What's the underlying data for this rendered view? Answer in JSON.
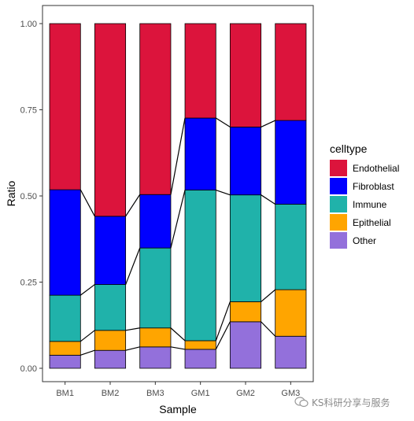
{
  "chart_data": {
    "type": "bar",
    "stacked": true,
    "categories": [
      "BM1",
      "BM2",
      "BM3",
      "GM1",
      "GM2",
      "GM3"
    ],
    "xlabel": "Sample",
    "ylabel": "Ratio",
    "ylim": [
      0,
      1
    ],
    "yticks": [
      0.0,
      0.25,
      0.5,
      0.75,
      1.0
    ],
    "ytick_labels": [
      "0.00",
      "0.25",
      "0.50",
      "0.75",
      "1.00"
    ],
    "grid": false,
    "legend": {
      "title": "celltype",
      "position": "right"
    },
    "series": [
      {
        "name": "Other",
        "color": "#9370DB",
        "values": [
          0.038,
          0.052,
          0.062,
          0.055,
          0.135,
          0.093
        ]
      },
      {
        "name": "Epithelial",
        "color": "#FFA500",
        "values": [
          0.04,
          0.058,
          0.055,
          0.025,
          0.058,
          0.135
        ]
      },
      {
        "name": "Immune",
        "color": "#20B2AA",
        "values": [
          0.134,
          0.133,
          0.232,
          0.437,
          0.31,
          0.248
        ]
      },
      {
        "name": "Fibroblast",
        "color": "#0000FF",
        "values": [
          0.306,
          0.198,
          0.155,
          0.209,
          0.197,
          0.243
        ]
      },
      {
        "name": "Endothelial",
        "color": "#DC143C",
        "values": [
          0.482,
          0.559,
          0.496,
          0.274,
          0.3,
          0.281
        ]
      }
    ],
    "legend_order": [
      "Endothelial",
      "Fibroblast",
      "Immune",
      "Epithelial",
      "Other"
    ]
  },
  "watermark": {
    "text": "KS科研分享与服务",
    "icon": "wechat-icon"
  }
}
